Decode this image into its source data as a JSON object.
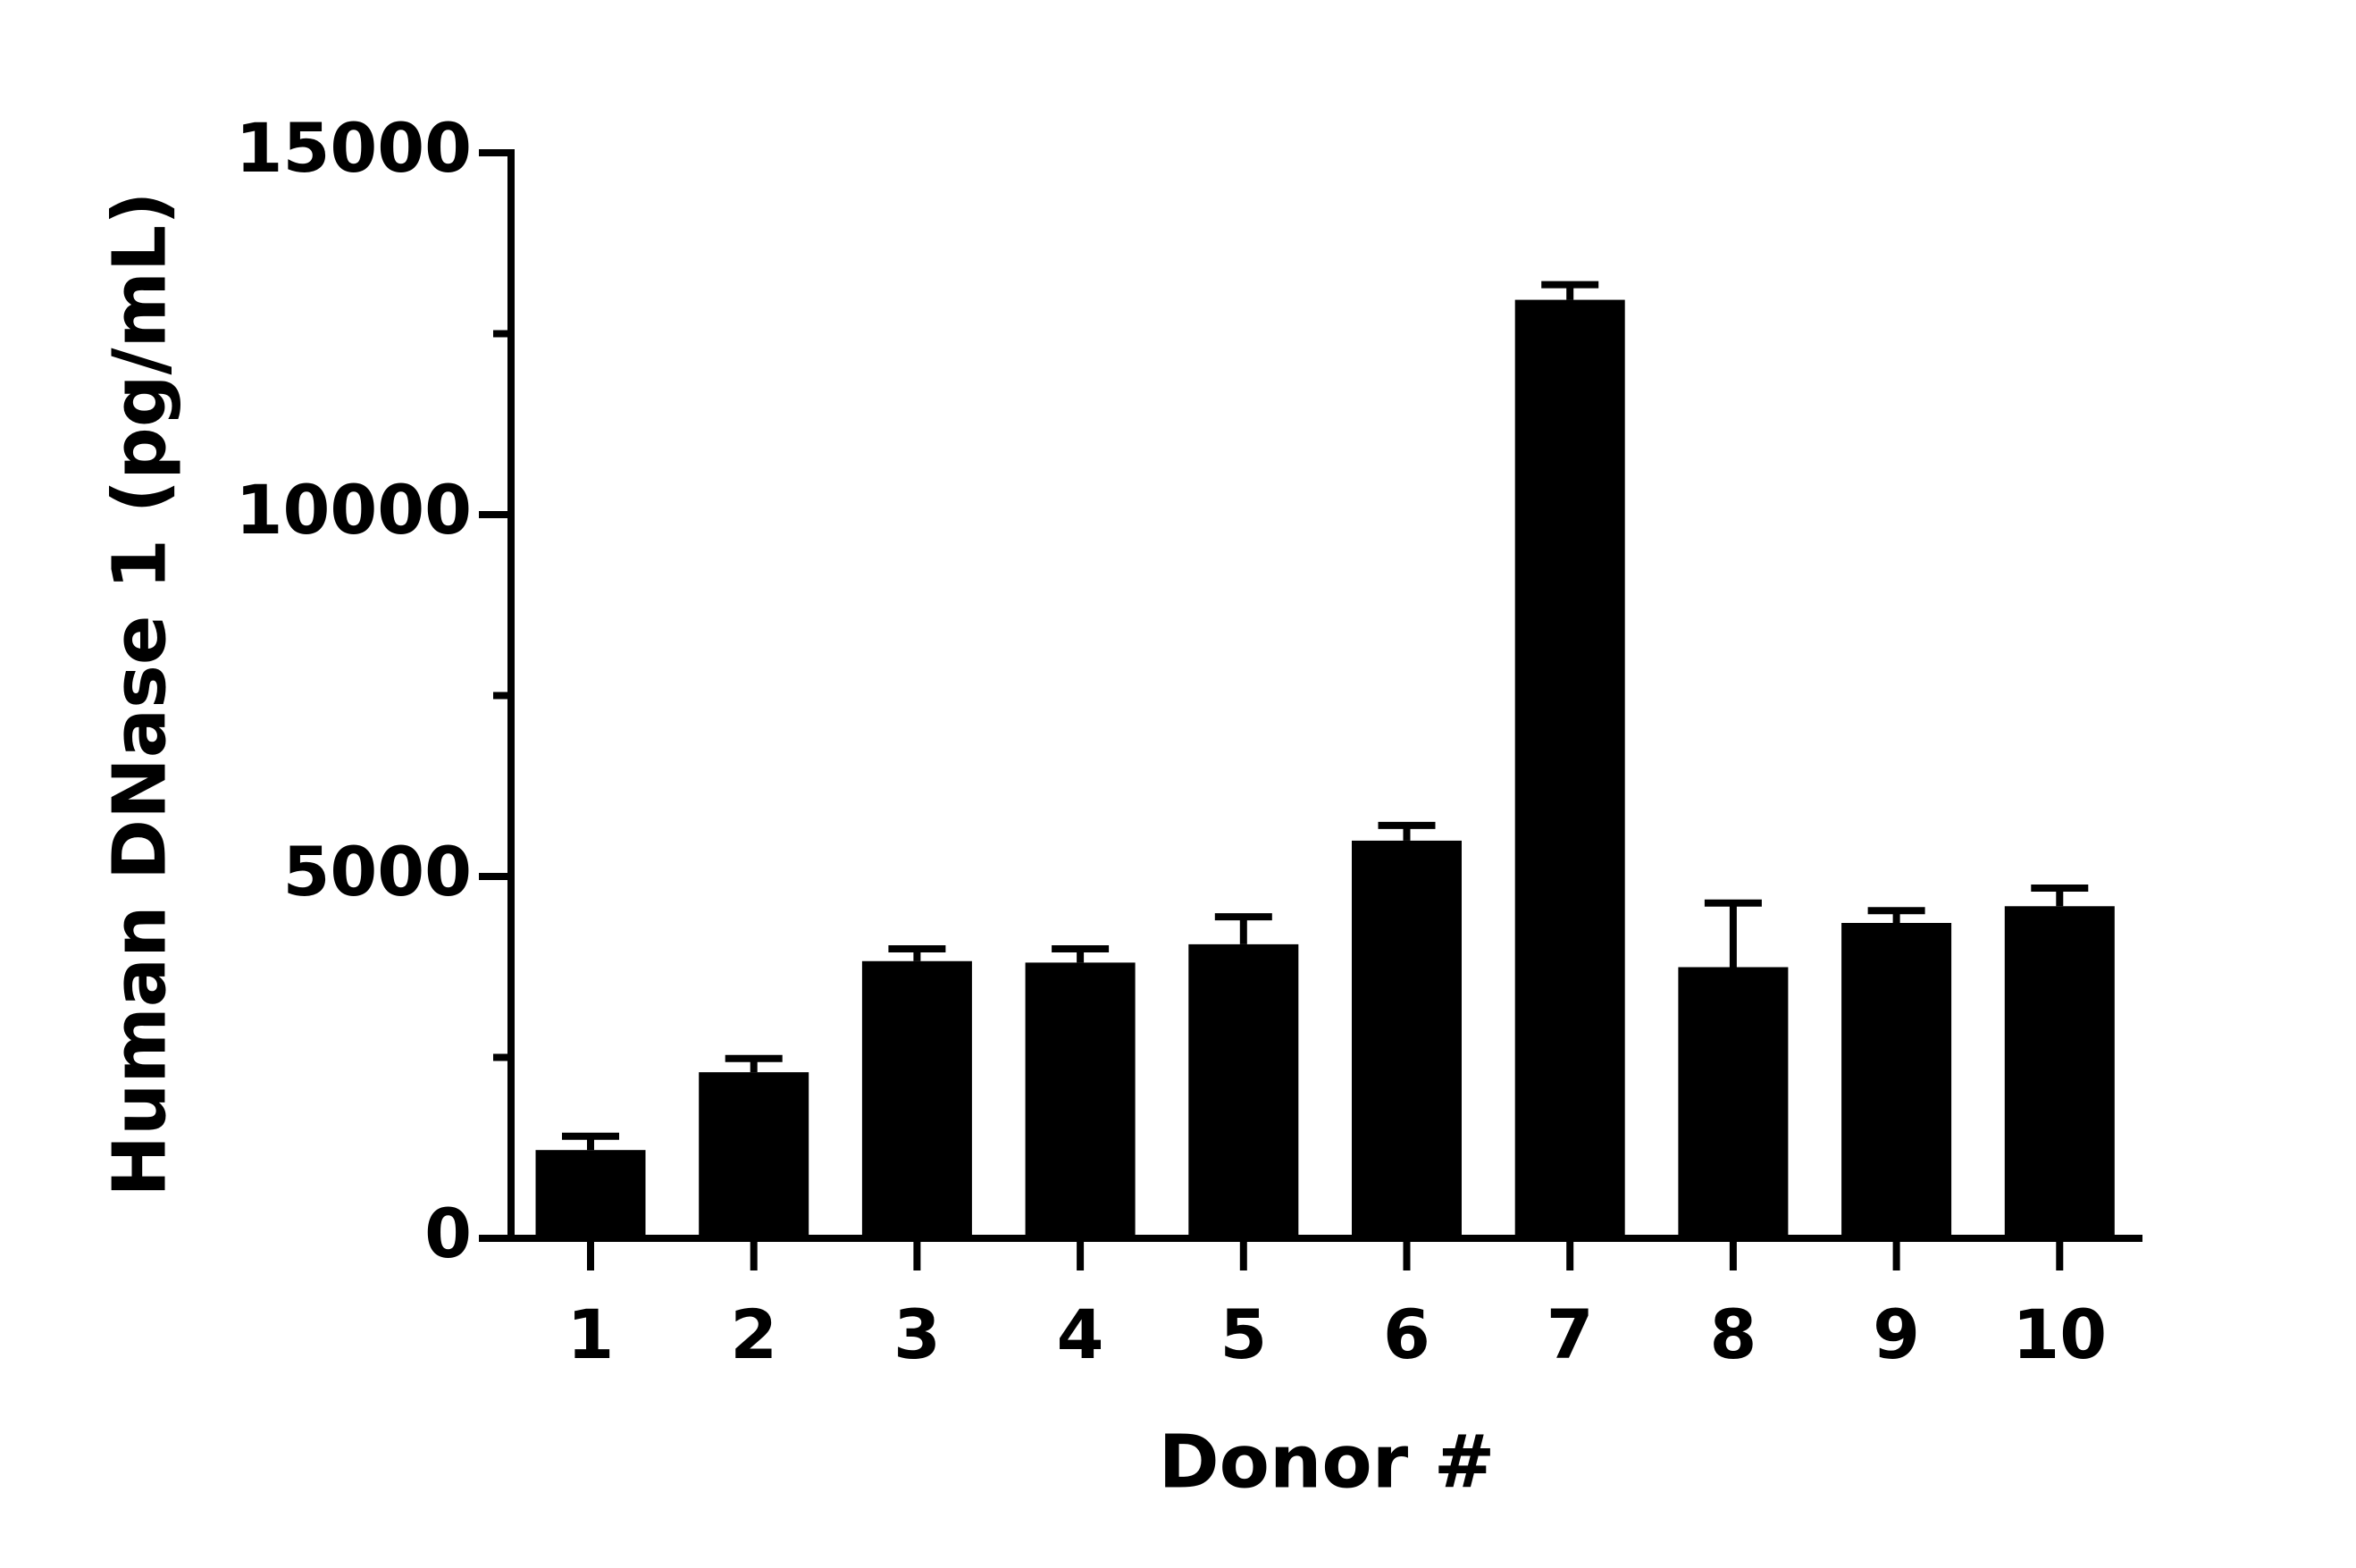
{
  "chart_data": {
    "type": "bar",
    "x_label": "Donor #",
    "y_label": "Human DNase 1 (pg/mL)",
    "categories": [
      "1",
      "2",
      "3",
      "4",
      "5",
      "6",
      "7",
      "8",
      "9",
      "10"
    ],
    "values": [
      1220,
      2295,
      3830,
      3810,
      4063,
      5495,
      12968,
      3747,
      4358,
      4589
    ],
    "errors": [
      190,
      190,
      170,
      190,
      380,
      210,
      210,
      885,
      170,
      250
    ],
    "color": "#000000",
    "ylim": [
      0,
      15000
    ],
    "yticks": [
      0,
      5000,
      10000,
      15000
    ],
    "minor_yticks": [
      2500,
      7500,
      12500
    ],
    "grid": false
  }
}
